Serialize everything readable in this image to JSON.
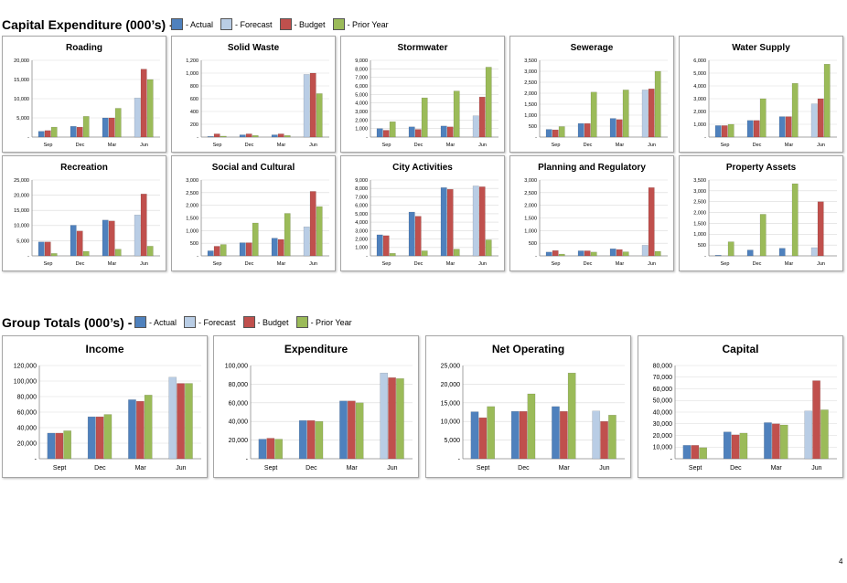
{
  "page_number": "4",
  "legend": [
    {
      "label": "- Actual",
      "color": "#4f81bd"
    },
    {
      "label": "- Forecast",
      "color": "#b9cde5"
    },
    {
      "label": "- Budget",
      "color": "#c0504d"
    },
    {
      "label": "- Prior Year",
      "color": "#9bbb59"
    }
  ],
  "capex": {
    "title": "Capital Expenditure (000’s) –",
    "charts": [
      {
        "title": "Roading",
        "type": "bar",
        "categories": [
          "Sep",
          "Dec",
          "Mar",
          "Jun"
        ],
        "ylim": [
          0,
          20000
        ],
        "ticks": [
          0,
          5000,
          10000,
          15000,
          20000
        ],
        "series": [
          {
            "name": "- Actual",
            "values": [
              1500,
              2800,
              5000,
              null
            ]
          },
          {
            "name": "- Forecast",
            "values": [
              null,
              null,
              null,
              10200
            ]
          },
          {
            "name": "- Budget",
            "values": [
              1700,
              2600,
              5000,
              17700
            ]
          },
          {
            "name": "- Prior Year",
            "values": [
              2600,
              5400,
              7500,
              15000
            ]
          }
        ]
      },
      {
        "title": "Solid Waste",
        "type": "bar",
        "categories": [
          "Sep",
          "Dec",
          "Mar",
          "Jun"
        ],
        "ylim": [
          0,
          1200
        ],
        "ticks": [
          0,
          200,
          400,
          600,
          800,
          1000,
          1200
        ],
        "series": [
          {
            "name": "- Actual",
            "values": [
              10,
              35,
              35,
              null
            ]
          },
          {
            "name": "- Forecast",
            "values": [
              null,
              null,
              null,
              980
            ]
          },
          {
            "name": "- Budget",
            "values": [
              50,
              50,
              50,
              1000
            ]
          },
          {
            "name": "- Prior Year",
            "values": [
              15,
              25,
              25,
              680
            ]
          }
        ]
      },
      {
        "title": "Stormwater",
        "type": "bar",
        "categories": [
          "Sep",
          "Dec",
          "Mar",
          "Jun"
        ],
        "ylim": [
          0,
          9000
        ],
        "ticks": [
          0,
          1000,
          2000,
          3000,
          4000,
          5000,
          6000,
          7000,
          8000,
          9000
        ],
        "series": [
          {
            "name": "- Actual",
            "values": [
              1000,
              1200,
              1300,
              null
            ]
          },
          {
            "name": "- Forecast",
            "values": [
              null,
              null,
              null,
              2500
            ]
          },
          {
            "name": "- Budget",
            "values": [
              800,
              900,
              1200,
              4700
            ]
          },
          {
            "name": "- Prior Year",
            "values": [
              1800,
              4600,
              5400,
              8200
            ]
          }
        ]
      },
      {
        "title": "Sewerage",
        "type": "bar",
        "categories": [
          "Sep",
          "Dec",
          "Mar",
          "Jun"
        ],
        "ylim": [
          0,
          3500
        ],
        "ticks": [
          0,
          500,
          1000,
          1500,
          2000,
          2500,
          3000,
          3500
        ],
        "series": [
          {
            "name": "- Actual",
            "values": [
              350,
              620,
              850,
              null
            ]
          },
          {
            "name": "- Forecast",
            "values": [
              null,
              null,
              null,
              2150
            ]
          },
          {
            "name": "- Budget",
            "values": [
              330,
              620,
              800,
              2200
            ]
          },
          {
            "name": "- Prior Year",
            "values": [
              480,
              2050,
              2150,
              3000
            ]
          }
        ]
      },
      {
        "title": "Water Supply",
        "type": "bar",
        "categories": [
          "Sep",
          "Dec",
          "Mar",
          "Jun"
        ],
        "ylim": [
          0,
          6000
        ],
        "ticks": [
          0,
          1000,
          2000,
          3000,
          4000,
          5000,
          6000
        ],
        "series": [
          {
            "name": "- Actual",
            "values": [
              900,
              1300,
              1600,
              null
            ]
          },
          {
            "name": "- Forecast",
            "values": [
              null,
              null,
              null,
              2600
            ]
          },
          {
            "name": "- Budget",
            "values": [
              900,
              1300,
              1600,
              3000
            ]
          },
          {
            "name": "- Prior Year",
            "values": [
              1000,
              3000,
              4200,
              5700
            ]
          }
        ]
      },
      {
        "title": "Recreation",
        "type": "bar",
        "categories": [
          "Sep",
          "Dec",
          "Mar",
          "Jun"
        ],
        "ylim": [
          0,
          25000
        ],
        "ticks": [
          0,
          5000,
          10000,
          15000,
          20000,
          25000
        ],
        "series": [
          {
            "name": "- Actual",
            "values": [
              4600,
              10100,
              11800,
              null
            ]
          },
          {
            "name": "- Forecast",
            "values": [
              null,
              null,
              null,
              13500
            ]
          },
          {
            "name": "- Budget",
            "values": [
              4600,
              8200,
              11500,
              20400
            ]
          },
          {
            "name": "- Prior Year",
            "values": [
              800,
              1500,
              2200,
              3200
            ]
          }
        ]
      },
      {
        "title": "Social and Cultural",
        "type": "bar",
        "categories": [
          "Sep",
          "Dec",
          "Mar",
          "Jun"
        ],
        "ylim": [
          0,
          3000
        ],
        "ticks": [
          0,
          500,
          1000,
          1500,
          2000,
          2500,
          3000
        ],
        "series": [
          {
            "name": "- Actual",
            "values": [
              200,
              520,
              700,
              null
            ]
          },
          {
            "name": "- Forecast",
            "values": [
              null,
              null,
              null,
              1150
            ]
          },
          {
            "name": "- Budget",
            "values": [
              380,
              520,
              650,
              2550
            ]
          },
          {
            "name": "- Prior Year",
            "values": [
              450,
              1300,
              1680,
              1950
            ]
          }
        ]
      },
      {
        "title": "City Activities",
        "type": "bar",
        "categories": [
          "Sep",
          "Dec",
          "Mar",
          "Jun"
        ],
        "ylim": [
          0,
          9000
        ],
        "ticks": [
          0,
          1000,
          2000,
          3000,
          4000,
          5000,
          6000,
          7000,
          8000,
          9000
        ],
        "series": [
          {
            "name": "- Actual",
            "values": [
              2500,
              5200,
              8100,
              null
            ]
          },
          {
            "name": "- Forecast",
            "values": [
              null,
              null,
              null,
              8300
            ]
          },
          {
            "name": "- Budget",
            "values": [
              2400,
              4700,
              7900,
              8200
            ]
          },
          {
            "name": "- Prior Year",
            "values": [
              300,
              600,
              800,
              1900
            ]
          }
        ]
      },
      {
        "title": "Planning and Regulatory",
        "type": "bar",
        "categories": [
          "Sep",
          "Dec",
          "Mar",
          "Jun"
        ],
        "ylim": [
          0,
          3000
        ],
        "ticks": [
          0,
          500,
          1000,
          1500,
          2000,
          2500,
          3000
        ],
        "series": [
          {
            "name": "- Actual",
            "values": [
              150,
              200,
              280,
              null
            ]
          },
          {
            "name": "- Forecast",
            "values": [
              null,
              null,
              null,
              420
            ]
          },
          {
            "name": "- Budget",
            "values": [
              210,
              200,
              250,
              2700
            ]
          },
          {
            "name": "- Prior Year",
            "values": [
              70,
              150,
              160,
              180
            ]
          }
        ]
      },
      {
        "title": "Property Assets",
        "type": "bar",
        "categories": [
          "Sep",
          "Dec",
          "Mar",
          "Jun"
        ],
        "ylim": [
          0,
          3500
        ],
        "ticks": [
          0,
          500,
          1000,
          1500,
          2000,
          2500,
          3000,
          3500
        ],
        "series": [
          {
            "name": "- Actual",
            "values": [
              30,
              270,
              350,
              null
            ]
          },
          {
            "name": "- Forecast",
            "values": [
              null,
              null,
              null,
              380
            ]
          },
          {
            "name": "- Budget",
            "values": [
              0,
              0,
              0,
              2500
            ]
          },
          {
            "name": "- Prior Year",
            "values": [
              650,
              1920,
              3330,
              0
            ]
          }
        ]
      }
    ]
  },
  "group": {
    "title": "Group Totals (000’s) -",
    "charts": [
      {
        "title": "Income",
        "type": "bar",
        "categories": [
          "Sept",
          "Dec",
          "Mar",
          "Jun"
        ],
        "ylim": [
          0,
          120000
        ],
        "ticks": [
          0,
          20000,
          40000,
          60000,
          80000,
          100000,
          120000
        ],
        "series": [
          {
            "name": "- Actual",
            "values": [
              33000,
              54000,
              76000,
              null
            ]
          },
          {
            "name": "- Forecast",
            "values": [
              null,
              null,
              null,
              105000
            ]
          },
          {
            "name": "- Budget",
            "values": [
              33000,
              54000,
              74000,
              97000
            ]
          },
          {
            "name": "- Prior Year",
            "values": [
              36000,
              57000,
              82000,
              97000
            ]
          }
        ]
      },
      {
        "title": "Expenditure",
        "type": "bar",
        "categories": [
          "Sept",
          "Dec",
          "Mar",
          "Jun"
        ],
        "ylim": [
          0,
          100000
        ],
        "ticks": [
          0,
          20000,
          40000,
          60000,
          80000,
          100000
        ],
        "series": [
          {
            "name": "- Actual",
            "values": [
              21000,
              41000,
              62000,
              null
            ]
          },
          {
            "name": "- Forecast",
            "values": [
              null,
              null,
              null,
              92000
            ]
          },
          {
            "name": "- Budget",
            "values": [
              22000,
              41000,
              62000,
              87000
            ]
          },
          {
            "name": "- Prior Year",
            "values": [
              21000,
              40000,
              60000,
              86000
            ]
          }
        ]
      },
      {
        "title": "Net Operating",
        "type": "bar",
        "categories": [
          "Sept",
          "Dec",
          "Mar",
          "Jun"
        ],
        "ylim": [
          0,
          25000
        ],
        "ticks": [
          0,
          5000,
          10000,
          15000,
          20000,
          25000
        ],
        "series": [
          {
            "name": "- Actual",
            "values": [
              12600,
              12700,
              14000,
              null
            ]
          },
          {
            "name": "- Forecast",
            "values": [
              null,
              null,
              null,
              12800
            ]
          },
          {
            "name": "- Budget",
            "values": [
              11000,
              12700,
              12700,
              10000
            ]
          },
          {
            "name": "- Prior Year",
            "values": [
              14000,
              17400,
              23000,
              11700
            ]
          }
        ]
      },
      {
        "title": "Capital",
        "type": "bar",
        "categories": [
          "Sept",
          "Dec",
          "Mar",
          "Jun"
        ],
        "ylim": [
          0,
          80000
        ],
        "ticks": [
          0,
          10000,
          20000,
          30000,
          40000,
          50000,
          60000,
          70000,
          80000
        ],
        "series": [
          {
            "name": "- Actual",
            "values": [
              11500,
              23000,
              31000,
              null
            ]
          },
          {
            "name": "- Forecast",
            "values": [
              null,
              null,
              null,
              41000
            ]
          },
          {
            "name": "- Budget",
            "values": [
              11500,
              20500,
              30000,
              67000
            ]
          },
          {
            "name": "- Prior Year",
            "values": [
              9500,
              22000,
              29000,
              42000
            ]
          }
        ]
      }
    ]
  }
}
